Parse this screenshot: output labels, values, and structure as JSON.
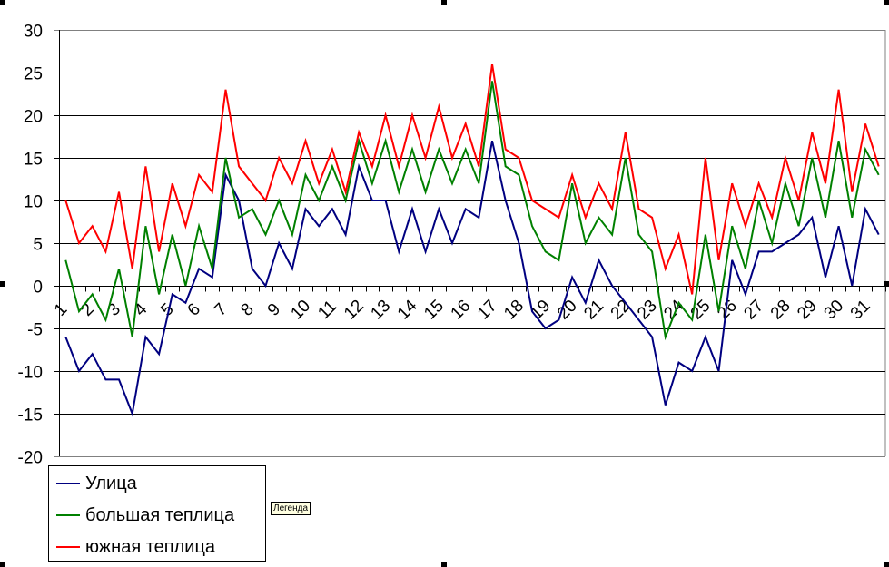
{
  "chart_data": {
    "type": "line",
    "title": "",
    "xlabel": "",
    "ylabel": "",
    "ylim": [
      -20,
      30
    ],
    "yticks": [
      30,
      25,
      20,
      15,
      10,
      5,
      0,
      -5,
      -10,
      -15,
      -20
    ],
    "grid": true,
    "legend_position": "bottom-left",
    "x_tick_labels": [
      "1",
      "2",
      "3",
      "4",
      "5",
      "6",
      "7",
      "8",
      "9",
      "10",
      "11",
      "12",
      "13",
      "14",
      "15",
      "16",
      "17",
      "18",
      "19",
      "20",
      "21",
      "22",
      "23",
      "24",
      "25",
      "26",
      "27",
      "28",
      "29",
      "30",
      "31"
    ],
    "points_per_label": 2,
    "series": [
      {
        "name": "Улица",
        "color": "#000080",
        "values": [
          -6,
          -10,
          -8,
          -11,
          -11,
          -15,
          -6,
          -8,
          -1,
          -2,
          2,
          1,
          13,
          10,
          2,
          0,
          5,
          2,
          9,
          7,
          9,
          6,
          14,
          10,
          10,
          4,
          9,
          4,
          9,
          5,
          9,
          8,
          17,
          10,
          5,
          -3,
          -5,
          -4,
          1,
          -2,
          3,
          0,
          -2,
          -4,
          -6,
          -14,
          -9,
          -10,
          -6,
          -10,
          3,
          -1,
          4,
          4,
          5,
          6,
          8,
          1,
          7,
          0,
          9,
          6
        ]
      },
      {
        "name": "большая теплица",
        "color": "#008000",
        "values": [
          3,
          -3,
          -1,
          -4,
          2,
          -6,
          7,
          -1,
          6,
          0,
          7,
          2,
          15,
          8,
          9,
          6,
          10,
          6,
          13,
          10,
          14,
          10,
          17,
          12,
          17,
          11,
          16,
          11,
          16,
          12,
          16,
          12,
          24,
          14,
          13,
          7,
          4,
          3,
          12,
          5,
          8,
          6,
          15,
          6,
          4,
          -6,
          -2,
          -4,
          6,
          -3,
          7,
          2,
          10,
          5,
          12,
          7,
          15,
          8,
          17,
          8,
          16,
          13
        ]
      },
      {
        "name": "южная теплица",
        "color": "#ff0000",
        "values": [
          10,
          5,
          7,
          4,
          11,
          2,
          14,
          4,
          12,
          7,
          13,
          11,
          23,
          14,
          12,
          10,
          15,
          12,
          17,
          12,
          16,
          11,
          18,
          14,
          20,
          14,
          20,
          15,
          21,
          15,
          19,
          14,
          26,
          16,
          15,
          10,
          9,
          8,
          13,
          8,
          12,
          9,
          18,
          9,
          8,
          2,
          6,
          -1,
          15,
          3,
          12,
          7,
          12,
          8,
          15,
          10,
          18,
          12,
          23,
          11,
          19,
          14
        ]
      }
    ]
  },
  "tooltip": "Легенда"
}
